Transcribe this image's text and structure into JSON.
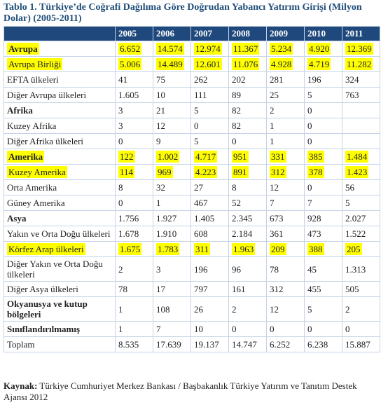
{
  "title": "Tablo 1. Türkiye’de Coğrafi Dağılıma Göre Doğrudan Yabancı Yatırım Girişi (Milyon Dolar) (2005-2011)",
  "table": {
    "columns": [
      "2005",
      "2006",
      "2007",
      "2008",
      "2009",
      "2010",
      "2011"
    ],
    "rows": [
      {
        "label": "Avrupa",
        "cells": [
          "6.652",
          "14.574",
          "12.974",
          "11.367",
          "5.234",
          "4.920",
          "12.369"
        ]
      },
      {
        "label": "Avrupa Birliği",
        "cells": [
          "5.006",
          "14.489",
          "12.601",
          "11.076",
          "4.928",
          "4.719",
          "11.282"
        ]
      },
      {
        "label": "EFTA ülkeleri",
        "cells": [
          "41",
          "75",
          "262",
          "202",
          "281",
          "196",
          "324"
        ]
      },
      {
        "label": "Diğer Avrupa ülkeleri",
        "cells": [
          "1.605",
          "10",
          "111",
          "89",
          "25",
          "5",
          "763"
        ]
      },
      {
        "label": "Afrika",
        "cells": [
          "3",
          "21",
          "5",
          "82",
          "2",
          "0",
          null
        ]
      },
      {
        "label": "Kuzey Afrika",
        "cells": [
          "3",
          "12",
          "0",
          "82",
          "1",
          "0",
          null
        ]
      },
      {
        "label": "Diğer Afrika ülkeleri",
        "cells": [
          "0",
          "9",
          "5",
          "0",
          "1",
          "0",
          null
        ]
      },
      {
        "label": "Amerika",
        "cells": [
          "122",
          "1.002",
          "4.717",
          "951",
          "331",
          "385",
          "1.484"
        ]
      },
      {
        "label": "Kuzey Amerika",
        "cells": [
          "114",
          "969",
          "4.223",
          "891",
          "312",
          "378",
          "1.423"
        ]
      },
      {
        "label": "Orta Amerika",
        "cells": [
          "8",
          "32",
          "27",
          "8",
          "12",
          "0",
          "56"
        ]
      },
      {
        "label": "Güney Amerika",
        "cells": [
          "0",
          "1",
          "467",
          "52",
          "7",
          "7",
          "5"
        ]
      },
      {
        "label": "Asya",
        "cells": [
          "1.756",
          "1.927",
          "1.405",
          "2.345",
          "673",
          "928",
          "2.027"
        ]
      },
      {
        "label": "Yakın ve Orta Doğu ülkeleri",
        "cells": [
          "1.678",
          "1.910",
          "608",
          "2.184",
          "361",
          "473",
          "1.522"
        ]
      },
      {
        "label": "Körfez Arap ülkeleri",
        "cells": [
          "1.675",
          "1.783",
          "311",
          "1.963",
          "209",
          "388",
          "205"
        ]
      },
      {
        "label": "Diğer Yakın ve Orta Doğu ülkeleri",
        "cells": [
          "2",
          "3",
          "196",
          "96",
          "78",
          "45",
          "1.313"
        ]
      },
      {
        "label": "Diğer Asya ülkeleri",
        "cells": [
          "78",
          "17",
          "797",
          "161",
          "312",
          "455",
          "505"
        ]
      },
      {
        "label": "Okyanusya ve kutup bölgeleri",
        "cells": [
          "1",
          "108",
          "26",
          "2",
          "12",
          "5",
          "2"
        ]
      },
      {
        "label": "Sınıflandırılmamış",
        "cells": [
          "1",
          "7",
          "10",
          "0",
          "0",
          "0",
          "0"
        ]
      },
      {
        "label": "Toplam",
        "cells": [
          "8.535",
          "17.639",
          "19.137",
          "14.747",
          "6.252",
          "6.238",
          "15.887"
        ]
      }
    ]
  },
  "source": {
    "label": "Kaynak:",
    "text": "Türkiye Cumhuriyet Merkez Bankası / Başbakanlık Türkiye Yatırım ve Tanıtım Destek Ajansı 2012"
  }
}
